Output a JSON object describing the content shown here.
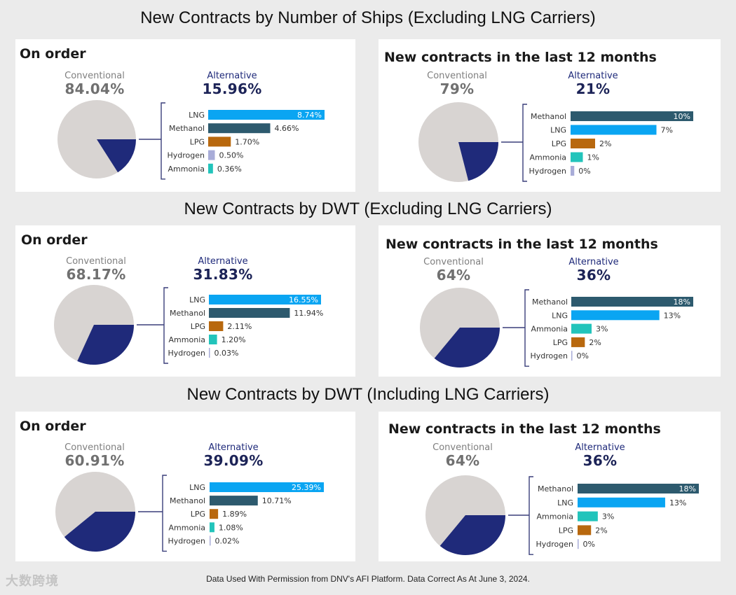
{
  "page": {
    "footer_note": "Data Used With Permission from DNV's AFI Platform. Data Correct As At June 3, 2024.",
    "watermark": "大数跨境"
  },
  "colors": {
    "conventional": "#d8d4d2",
    "alternative": "#1f2a7a",
    "LNG": "#0aa5f2",
    "Methanol": "#2d5a6e",
    "LPG": "#b8680e",
    "Hydrogen": "#a8acd8",
    "Ammonia": "#22c4bb"
  },
  "chart_data": [
    {
      "type": "pie+bar",
      "section": "New Contracts by Number of Ships  (Excluding LNG Carriers)",
      "title": "On order",
      "conventional": {
        "label": "Conventional",
        "value_text": "84.04%",
        "value": 84.04
      },
      "alternative": {
        "label": "Alternative",
        "value_text": "15.96%",
        "value": 15.96
      },
      "categories": [
        "LNG",
        "Methanol",
        "LPG",
        "Hydrogen",
        "Ammonia"
      ],
      "values": [
        8.74,
        4.66,
        1.7,
        0.5,
        0.36
      ],
      "value_labels": [
        "8.74%",
        "4.66%",
        "1.70%",
        "0.50%",
        "0.36%"
      ]
    },
    {
      "type": "pie+bar",
      "title": "New contracts in the last 12 months",
      "conventional": {
        "label": "Conventional",
        "value_text": "79%",
        "value": 79
      },
      "alternative": {
        "label": "Alternative",
        "value_text": "21%",
        "value": 21
      },
      "categories": [
        "Methanol",
        "LNG",
        "LPG",
        "Ammonia",
        "Hydrogen"
      ],
      "values": [
        10,
        7,
        2,
        1,
        0.3
      ],
      "value_labels": [
        "10%",
        "7%",
        "2%",
        "1%",
        "0%"
      ]
    },
    {
      "type": "pie+bar",
      "section": "New Contracts by DWT (Excluding LNG Carriers)",
      "title": "On order",
      "conventional": {
        "label": "Conventional",
        "value_text": "68.17%",
        "value": 68.17
      },
      "alternative": {
        "label": "Alternative",
        "value_text": "31.83%",
        "value": 31.83
      },
      "categories": [
        "LNG",
        "Methanol",
        "LPG",
        "Ammonia",
        "Hydrogen"
      ],
      "values": [
        16.55,
        11.94,
        2.11,
        1.2,
        0.03
      ],
      "value_labels": [
        "16.55%",
        "11.94%",
        "2.11%",
        "1.20%",
        "0.03%"
      ]
    },
    {
      "type": "pie+bar",
      "title": "New contracts in the last 12 months",
      "conventional": {
        "label": "Conventional",
        "value_text": "64%",
        "value": 64
      },
      "alternative": {
        "label": "Alternative",
        "value_text": "36%",
        "value": 36
      },
      "categories": [
        "Methanol",
        "LNG",
        "Ammonia",
        "LPG",
        "Hydrogen"
      ],
      "values": [
        18,
        13,
        3,
        2,
        0.1
      ],
      "value_labels": [
        "18%",
        "13%",
        "3%",
        "2%",
        "0%"
      ]
    },
    {
      "type": "pie+bar",
      "section": "New Contracts by DWT (Including LNG Carriers)",
      "title": "On order",
      "conventional": {
        "label": "Conventional",
        "value_text": "60.91%",
        "value": 60.91
      },
      "alternative": {
        "label": "Alternative",
        "value_text": "39.09%",
        "value": 39.09
      },
      "categories": [
        "LNG",
        "Methanol",
        "LPG",
        "Ammonia",
        "Hydrogen"
      ],
      "values": [
        25.39,
        10.71,
        1.89,
        1.08,
        0.02
      ],
      "value_labels": [
        "25.39%",
        "10.71%",
        "1.89%",
        "1.08%",
        "0.02%"
      ]
    },
    {
      "type": "pie+bar",
      "title": "New contracts in the last 12 months",
      "conventional": {
        "label": "Conventional",
        "value_text": "64%",
        "value": 64
      },
      "alternative": {
        "label": "Alternative",
        "value_text": "36%",
        "value": 36
      },
      "categories": [
        "Methanol",
        "LNG",
        "Ammonia",
        "LPG",
        "Hydrogen"
      ],
      "values": [
        18,
        13,
        3,
        2,
        0.1
      ],
      "value_labels": [
        "18%",
        "13%",
        "3%",
        "2%",
        "0%"
      ]
    }
  ]
}
